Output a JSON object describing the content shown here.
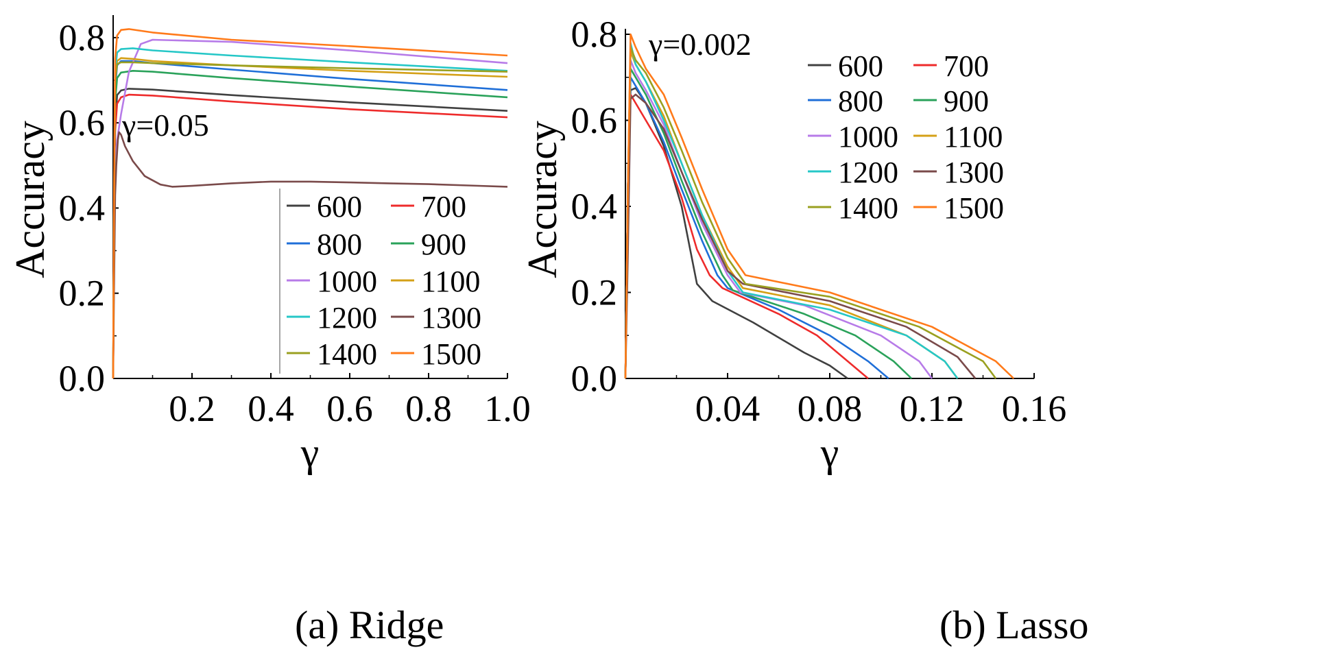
{
  "chart_data": [
    {
      "type": "line",
      "caption": "(a) Ridge",
      "xlabel": "γ",
      "ylabel": "Accuracy",
      "xlim": [
        0,
        1.0
      ],
      "ylim": [
        0,
        0.84
      ],
      "xticks": [
        0.2,
        0.4,
        0.6,
        0.8,
        1.0
      ],
      "xtick_labels": [
        "0.2",
        "0.4",
        "0.6",
        "0.8",
        "1.0"
      ],
      "yticks": [
        0.0,
        0.2,
        0.4,
        0.6,
        0.8
      ],
      "ytick_labels": [
        "0.0",
        "0.2",
        "0.4",
        "0.6",
        "0.8"
      ],
      "annotation": {
        "text": "γ=0.05",
        "x": 0.03,
        "y": 0.585
      },
      "legend_position": "bottom-right",
      "series": [
        {
          "name": "600",
          "color": "#404040",
          "x": [
            0.0,
            0.002,
            0.005,
            0.01,
            0.02,
            0.04,
            0.1,
            0.3,
            0.6,
            1.0
          ],
          "y": [
            0.0,
            0.3,
            0.6,
            0.665,
            0.676,
            0.68,
            0.678,
            0.665,
            0.648,
            0.628
          ]
        },
        {
          "name": "700",
          "color": "#ee2b2b",
          "x": [
            0.0,
            0.002,
            0.005,
            0.01,
            0.02,
            0.04,
            0.1,
            0.3,
            0.6,
            1.0
          ],
          "y": [
            0.0,
            0.3,
            0.58,
            0.645,
            0.66,
            0.666,
            0.664,
            0.65,
            0.632,
            0.613
          ]
        },
        {
          "name": "800",
          "color": "#1f6fd8",
          "x": [
            0.0,
            0.002,
            0.005,
            0.01,
            0.02,
            0.05,
            0.1,
            0.3,
            0.6,
            1.0
          ],
          "y": [
            0.0,
            0.35,
            0.68,
            0.735,
            0.745,
            0.745,
            0.74,
            0.725,
            0.703,
            0.677
          ]
        },
        {
          "name": "900",
          "color": "#2aa25a",
          "x": [
            0.0,
            0.002,
            0.005,
            0.01,
            0.02,
            0.05,
            0.1,
            0.3,
            0.6,
            1.0
          ],
          "y": [
            0.0,
            0.35,
            0.65,
            0.705,
            0.718,
            0.722,
            0.72,
            0.705,
            0.685,
            0.66
          ]
        },
        {
          "name": "1000",
          "color": "#b77be8",
          "x": [
            0.0,
            0.002,
            0.005,
            0.01,
            0.02,
            0.04,
            0.07,
            0.1,
            0.3,
            0.6,
            1.0
          ],
          "y": [
            0.0,
            0.3,
            0.5,
            0.56,
            0.62,
            0.72,
            0.785,
            0.795,
            0.79,
            0.77,
            0.74
          ]
        },
        {
          "name": "1100",
          "color": "#d4a017",
          "x": [
            0.0,
            0.002,
            0.005,
            0.01,
            0.02,
            0.05,
            0.1,
            0.3,
            0.6,
            1.0
          ],
          "y": [
            0.0,
            0.38,
            0.7,
            0.745,
            0.752,
            0.75,
            0.745,
            0.735,
            0.722,
            0.708
          ]
        },
        {
          "name": "1200",
          "color": "#25c7c7",
          "x": [
            0.0,
            0.002,
            0.005,
            0.01,
            0.02,
            0.05,
            0.1,
            0.3,
            0.6,
            1.0
          ],
          "y": [
            0.0,
            0.38,
            0.72,
            0.765,
            0.773,
            0.775,
            0.77,
            0.758,
            0.742,
            0.722
          ]
        },
        {
          "name": "1300",
          "color": "#7a4a4a",
          "x": [
            0.0,
            0.002,
            0.005,
            0.008,
            0.012,
            0.015,
            0.02,
            0.03,
            0.05,
            0.08,
            0.12,
            0.15,
            0.2,
            0.3,
            0.4,
            0.5,
            0.6,
            0.7,
            0.8,
            0.9,
            1.0
          ],
          "y": [
            0.0,
            0.2,
            0.43,
            0.5,
            0.56,
            0.578,
            0.572,
            0.545,
            0.51,
            0.475,
            0.455,
            0.45,
            0.452,
            0.458,
            0.462,
            0.462,
            0.46,
            0.458,
            0.456,
            0.453,
            0.45
          ]
        },
        {
          "name": "1400",
          "color": "#9aa020",
          "x": [
            0.0,
            0.002,
            0.005,
            0.01,
            0.02,
            0.05,
            0.1,
            0.3,
            0.6,
            1.0
          ],
          "y": [
            0.0,
            0.38,
            0.7,
            0.738,
            0.742,
            0.742,
            0.74,
            0.735,
            0.728,
            0.72
          ]
        },
        {
          "name": "1500",
          "color": "#ff7a1a",
          "x": [
            0.0,
            0.002,
            0.005,
            0.01,
            0.02,
            0.04,
            0.1,
            0.3,
            0.6,
            1.0
          ],
          "y": [
            0.0,
            0.4,
            0.75,
            0.805,
            0.818,
            0.82,
            0.812,
            0.795,
            0.78,
            0.758
          ]
        }
      ]
    },
    {
      "type": "line",
      "caption": "(b) Lasso",
      "xlabel": "γ",
      "ylabel": "Accuracy",
      "xlim": [
        0,
        0.16
      ],
      "ylim": [
        0,
        0.8
      ],
      "xticks": [
        0.04,
        0.08,
        0.12,
        0.16
      ],
      "xtick_labels": [
        "0.04",
        "0.08",
        "0.12",
        "0.16"
      ],
      "yticks": [
        0.0,
        0.2,
        0.4,
        0.6,
        0.8
      ],
      "ytick_labels": [
        "0.0",
        "0.2",
        "0.4",
        "0.6",
        "0.8"
      ],
      "annotation": {
        "text": "γ=0.002",
        "x": 0.0035,
        "y": 0.775
      },
      "legend_position": "top-right",
      "series": [
        {
          "name": "600",
          "color": "#404040",
          "x": [
            0.0,
            0.001,
            0.002,
            0.004,
            0.008,
            0.015,
            0.022,
            0.028,
            0.034,
            0.05,
            0.07,
            0.08,
            0.087
          ],
          "y": [
            0.0,
            0.45,
            0.67,
            0.675,
            0.64,
            0.54,
            0.4,
            0.22,
            0.18,
            0.13,
            0.06,
            0.03,
            0.0
          ]
        },
        {
          "name": "700",
          "color": "#ee2b2b",
          "x": [
            0.0,
            0.001,
            0.002,
            0.004,
            0.008,
            0.015,
            0.022,
            0.028,
            0.033,
            0.038,
            0.06,
            0.075,
            0.087,
            0.095
          ],
          "y": [
            0.0,
            0.45,
            0.66,
            0.64,
            0.6,
            0.53,
            0.42,
            0.3,
            0.24,
            0.21,
            0.15,
            0.1,
            0.04,
            0.0
          ]
        },
        {
          "name": "800",
          "color": "#1f6fd8",
          "x": [
            0.0,
            0.001,
            0.002,
            0.004,
            0.008,
            0.015,
            0.022,
            0.03,
            0.036,
            0.04,
            0.06,
            0.08,
            0.095,
            0.103
          ],
          "y": [
            0.0,
            0.45,
            0.7,
            0.68,
            0.64,
            0.55,
            0.44,
            0.32,
            0.24,
            0.21,
            0.16,
            0.1,
            0.04,
            0.0
          ]
        },
        {
          "name": "900",
          "color": "#2aa25a",
          "x": [
            0.0,
            0.001,
            0.002,
            0.004,
            0.008,
            0.015,
            0.022,
            0.03,
            0.038,
            0.042,
            0.07,
            0.09,
            0.105,
            0.112
          ],
          "y": [
            0.0,
            0.45,
            0.72,
            0.7,
            0.66,
            0.57,
            0.46,
            0.34,
            0.24,
            0.205,
            0.15,
            0.1,
            0.04,
            0.0
          ]
        },
        {
          "name": "1000",
          "color": "#b77be8",
          "x": [
            0.0,
            0.001,
            0.002,
            0.004,
            0.008,
            0.015,
            0.022,
            0.03,
            0.04,
            0.045,
            0.07,
            0.1,
            0.115,
            0.12
          ],
          "y": [
            0.0,
            0.45,
            0.74,
            0.71,
            0.67,
            0.59,
            0.48,
            0.36,
            0.24,
            0.2,
            0.17,
            0.1,
            0.04,
            0.0
          ]
        },
        {
          "name": "1100",
          "color": "#d4a017",
          "x": [
            0.0,
            0.001,
            0.002,
            0.004,
            0.008,
            0.015,
            0.022,
            0.03,
            0.04,
            0.046,
            0.08,
            0.11,
            0.125,
            0.13
          ],
          "y": [
            0.0,
            0.45,
            0.76,
            0.73,
            0.69,
            0.61,
            0.5,
            0.38,
            0.26,
            0.21,
            0.17,
            0.1,
            0.04,
            0.0
          ]
        },
        {
          "name": "1200",
          "color": "#25c7c7",
          "x": [
            0.0,
            0.001,
            0.002,
            0.004,
            0.008,
            0.015,
            0.022,
            0.03,
            0.04,
            0.046,
            0.08,
            0.11,
            0.125,
            0.13
          ],
          "y": [
            0.0,
            0.45,
            0.78,
            0.73,
            0.69,
            0.6,
            0.5,
            0.38,
            0.25,
            0.2,
            0.16,
            0.1,
            0.04,
            0.0
          ]
        },
        {
          "name": "1300",
          "color": "#7a4a4a",
          "x": [
            0.0,
            0.001,
            0.002,
            0.004,
            0.008,
            0.015,
            0.022,
            0.03,
            0.04,
            0.046,
            0.08,
            0.11,
            0.13,
            0.137
          ],
          "y": [
            0.0,
            0.3,
            0.65,
            0.66,
            0.64,
            0.58,
            0.48,
            0.37,
            0.25,
            0.22,
            0.18,
            0.12,
            0.05,
            0.0
          ]
        },
        {
          "name": "1400",
          "color": "#9aa020",
          "x": [
            0.0,
            0.001,
            0.002,
            0.004,
            0.008,
            0.015,
            0.022,
            0.03,
            0.04,
            0.047,
            0.08,
            0.115,
            0.14,
            0.145
          ],
          "y": [
            0.0,
            0.45,
            0.77,
            0.74,
            0.71,
            0.63,
            0.53,
            0.41,
            0.28,
            0.22,
            0.19,
            0.12,
            0.04,
            0.0
          ]
        },
        {
          "name": "1500",
          "color": "#ff7a1a",
          "x": [
            0.0,
            0.001,
            0.002,
            0.004,
            0.008,
            0.015,
            0.022,
            0.03,
            0.04,
            0.047,
            0.08,
            0.12,
            0.145,
            0.152
          ],
          "y": [
            0.0,
            0.45,
            0.8,
            0.77,
            0.72,
            0.66,
            0.56,
            0.44,
            0.3,
            0.24,
            0.2,
            0.12,
            0.04,
            0.0
          ]
        }
      ]
    }
  ]
}
